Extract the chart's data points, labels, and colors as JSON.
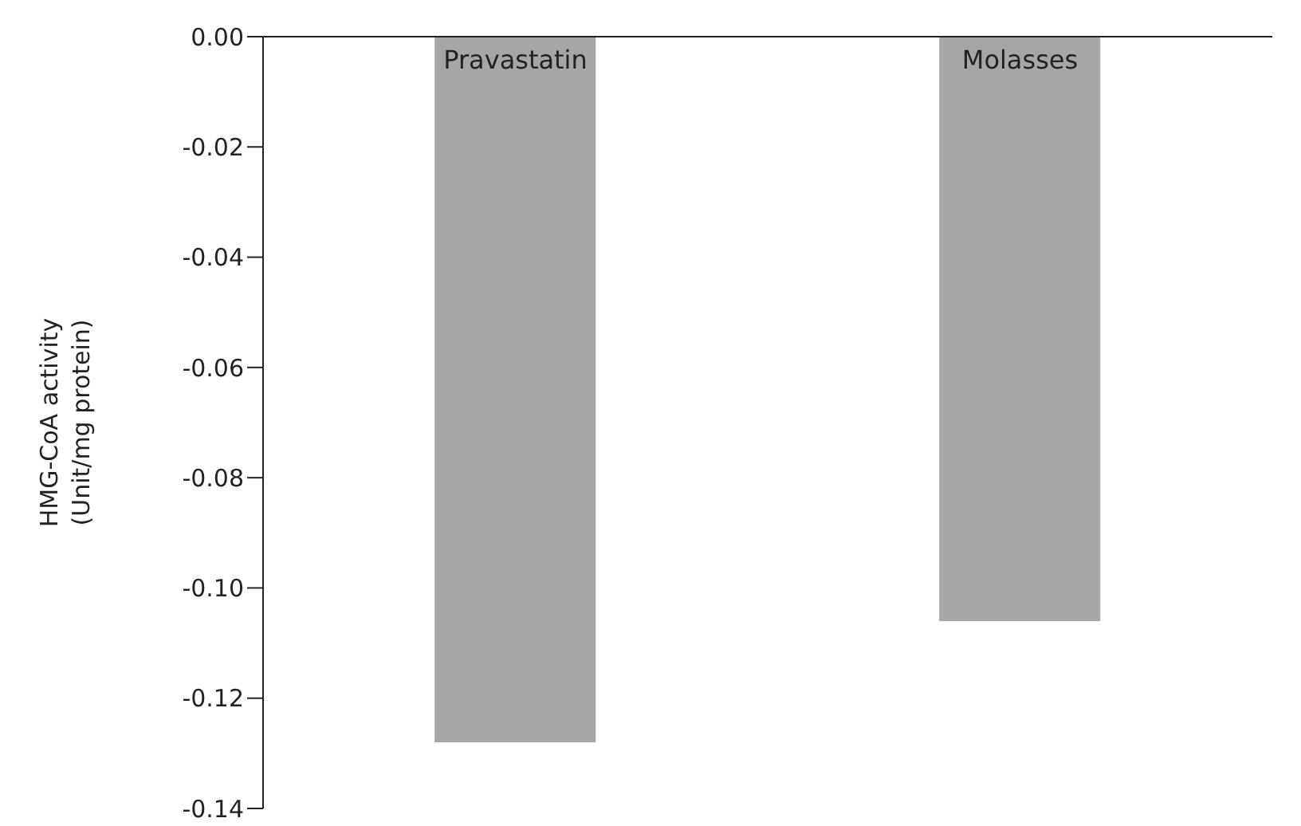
{
  "chart_data": {
    "type": "bar",
    "ylabel": "HMG-CoA activity\n(Unit/mg protein)",
    "categories": [
      "Pravastatin",
      "Molasses"
    ],
    "values": [
      -0.128,
      -0.106
    ],
    "color": "#a6a6a6",
    "ylim": [
      -0.14,
      0
    ],
    "yticks": [
      {
        "value": 0,
        "label": "0.00"
      },
      -0.02,
      -0.04,
      -0.06,
      -0.08,
      {
        "value": -0.1,
        "label": "-0.10"
      },
      -0.12,
      -0.14
    ],
    "grid": false,
    "legend": false
  }
}
